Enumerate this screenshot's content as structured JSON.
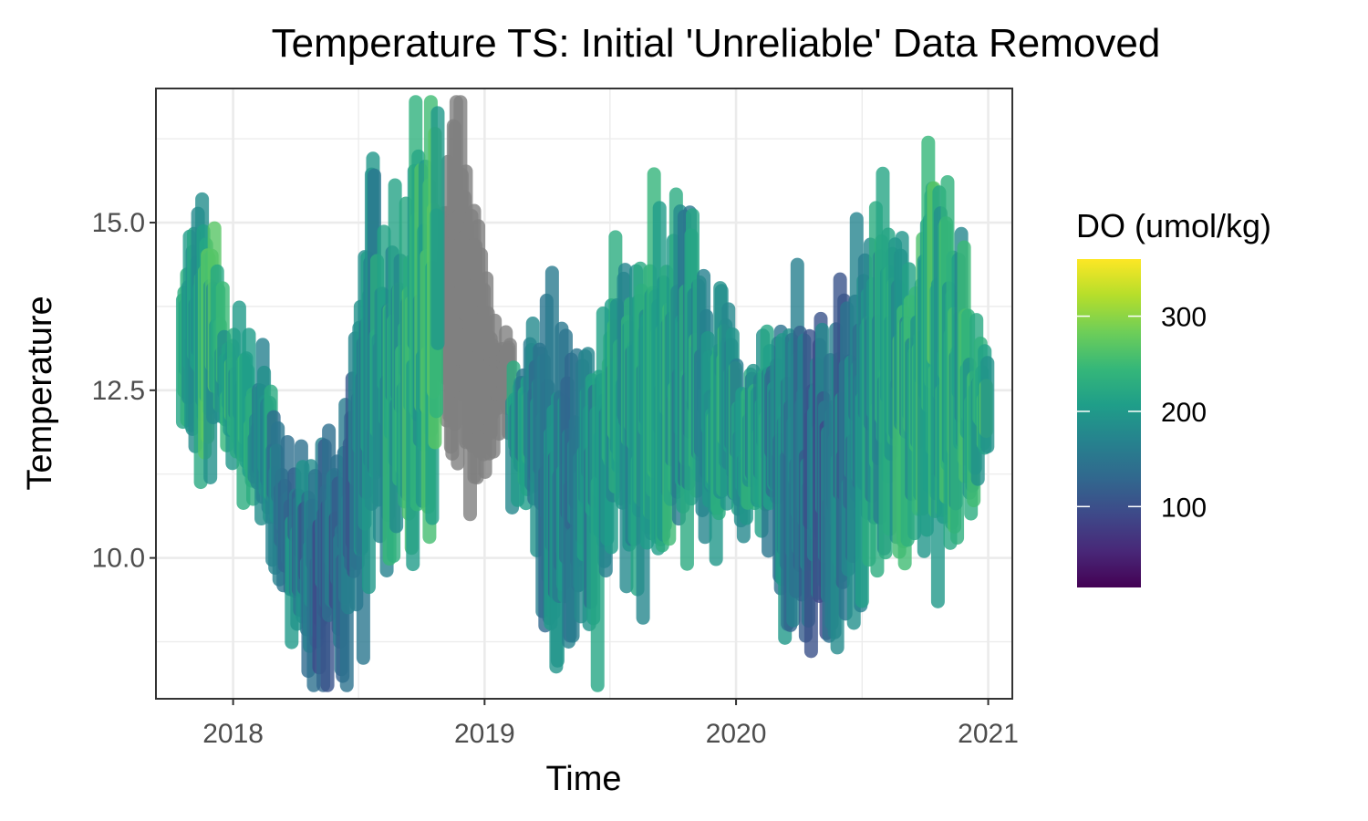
{
  "chart_data": {
    "type": "scatter",
    "title": "Temperature TS: Initial 'Unreliable' Data Removed",
    "xlabel": "Time",
    "ylabel": "Temperature",
    "x_ticks": [
      "2018",
      "2019",
      "2020",
      "2021"
    ],
    "y_ticks": [
      "10.0",
      "12.5",
      "15.0"
    ],
    "xlim": [
      "2017-09-11",
      "2021-02-05"
    ],
    "ylim": [
      7.9,
      17.0
    ],
    "grid": true,
    "legend": {
      "title": "DO (umol/kg)",
      "placement": "right",
      "type": "colorbar",
      "ticks": [
        "100",
        "200",
        "300"
      ],
      "range": [
        15,
        360
      ],
      "colors": [
        "#440154",
        "#482878",
        "#3e4989",
        "#31688e",
        "#26828e",
        "#1f9e89",
        "#35b779",
        "#6ece58",
        "#b5de2b",
        "#fde725"
      ]
    },
    "na_color": "#808080",
    "na_period": [
      "2018-10-25",
      "2019-02-10"
    ],
    "series": [
      {
        "x": [
          "2017-10-20",
          "2017-11-20",
          "2017-12-15",
          "2018-01-15",
          "2018-02-15",
          "2018-03-15",
          "2018-04-15",
          "2018-05-15",
          "2018-06-15",
          "2018-07-15",
          "2018-08-15",
          "2018-09-15",
          "2018-10-15",
          "2019-02-20",
          "2019-03-15",
          "2019-04-15",
          "2019-05-15",
          "2019-06-15",
          "2019-07-15",
          "2019-08-15",
          "2019-09-15",
          "2019-10-15",
          "2019-11-15",
          "2019-12-15",
          "2020-01-15",
          "2020-02-15",
          "2020-03-15",
          "2020-04-15",
          "2020-05-15",
          "2020-06-15",
          "2020-07-15",
          "2020-08-15",
          "2020-09-15",
          "2020-10-15",
          "2020-11-15",
          "2020-12-15",
          "2020-12-31"
        ],
        "temp_min": [
          11.7,
          11.6,
          12.1,
          11.3,
          10.5,
          9.6,
          8.9,
          8.6,
          8.4,
          9.8,
          10.3,
          10.5,
          10.9,
          11.2,
          10.5,
          8.5,
          9.2,
          9.0,
          10.0,
          9.5,
          10.5,
          10.3,
          10.8,
          10.7,
          10.6,
          10.7,
          9.3,
          9.3,
          9.0,
          9.6,
          9.8,
          10.3,
          10.6,
          10.4,
          10.7,
          10.9,
          11.4
        ],
        "temp_max": [
          13.9,
          15.4,
          13.8,
          13.0,
          12.5,
          11.5,
          11.1,
          11.5,
          11.5,
          15.1,
          15.0,
          15.1,
          16.7,
          12.6,
          13.4,
          12.8,
          12.6,
          13.0,
          14.1,
          13.8,
          14.8,
          15.2,
          13.6,
          13.8,
          12.3,
          13.2,
          13.9,
          13.2,
          12.9,
          13.4,
          14.7,
          14.5,
          14.3,
          15.3,
          14.3,
          13.1,
          12.8
        ],
        "do_typical": [
          200,
          230,
          220,
          210,
          190,
          170,
          150,
          130,
          120,
          190,
          210,
          220,
          230,
          200,
          180,
          160,
          170,
          190,
          210,
          200,
          220,
          190,
          200,
          210,
          200,
          190,
          160,
          140,
          130,
          160,
          200,
          210,
          210,
          230,
          220,
          210,
          230
        ]
      }
    ],
    "unreliable_segment": {
      "x": [
        "2018-10-28",
        "2018-11-10",
        "2018-11-25",
        "2018-12-10",
        "2018-12-25",
        "2019-01-10",
        "2019-01-25",
        "2019-02-08"
      ],
      "temp_min": [
        13.3,
        12.5,
        11.0,
        11.2,
        10.9,
        11.8,
        12.2,
        12.5
      ],
      "temp_max": [
        15.0,
        16.3,
        16.3,
        15.0,
        14.5,
        13.5,
        13.3,
        13.6
      ]
    }
  }
}
